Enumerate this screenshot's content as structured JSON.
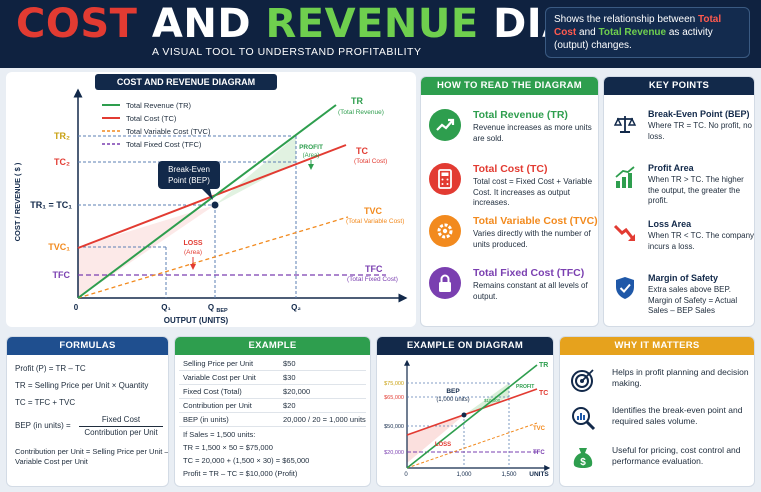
{
  "header": {
    "title_cost": "COST",
    "title_and": "AND",
    "title_revenue": "REVENUE",
    "title_diagram": "DIAGRAM",
    "subtitle": "A VISUAL TOOL TO UNDERSTAND PROFITABILITY",
    "note_pre": "Shows the relationship between ",
    "note_tc": "Total Cost",
    "note_and": " and ",
    "note_tr": "Total Revenue",
    "note_post": " as activity (output) changes."
  },
  "main_diagram": {
    "heading": "COST AND REVENUE DIAGRAM",
    "legend": [
      "Total Revenue (TR)",
      "Total Cost (TC)",
      "Total Variable Cost (TVC)",
      "Total Fixed Cost (TFC)"
    ],
    "y_axis_label": "COST / REVENUE ( $ )",
    "x_axis_label": "OUTPUT (UNITS)",
    "y_ticks": [
      "TR₂",
      "TC₂",
      "TR₁ = TC₁",
      "TVC₁",
      "TFC"
    ],
    "x_ticks": [
      "0",
      "Q₁",
      "Q",
      "BEP",
      "Q₂"
    ],
    "origin": "0",
    "tr_label": "TR",
    "tr_sub": "(Total Revenue)",
    "tc_label": "TC",
    "tc_sub": "(Total Cost)",
    "tvc_label": "TVC",
    "tvc_sub": "(Total Variable Cost)",
    "tfc_label": "TFC",
    "tfc_sub": "(Total Fixed Cost)",
    "bep_line1": "Break-Even",
    "bep_line2": "Point (BEP)",
    "profit_line1": "PROFIT",
    "profit_line2": "(Area)",
    "loss_line1": "LOSS",
    "loss_line2": "(Area)"
  },
  "how_to_read": {
    "heading": "HOW TO READ THE DIAGRAM",
    "items": [
      {
        "icon": "trend-up-icon",
        "title": "Total Revenue (TR)",
        "text": "Revenue increases as more units are sold.",
        "color": "#2e9e4e"
      },
      {
        "icon": "calculator-icon",
        "title": "Total Cost (TC)",
        "text": "Total cost = Fixed Cost + Variable Cost. It increases as output increases.",
        "color": "#e23b32"
      },
      {
        "icon": "gear-icon",
        "title": "Total Variable Cost (TVC)",
        "text": "Varies directly with the number of units produced.",
        "color": "#f28a1e"
      },
      {
        "icon": "lock-icon",
        "title": "Total Fixed Cost (TFC)",
        "text": "Remains constant at all levels of output.",
        "color": "#7a3fb0"
      }
    ]
  },
  "key_points": {
    "heading": "KEY POINTS",
    "items": [
      {
        "icon": "scale-icon",
        "title": "Break-Even Point (BEP)",
        "text": "Where TR = TC. No profit, no loss."
      },
      {
        "icon": "bar-chart-up-icon",
        "title": "Profit Area",
        "text": "When TR > TC. The higher the output, the greater the profit."
      },
      {
        "icon": "trend-down-icon",
        "title": "Loss Area",
        "text": "When TR < TC. The company incurs a loss."
      },
      {
        "icon": "shield-check-icon",
        "title": "Margin of Safety",
        "text": "Extra sales above BEP. Margin of Safety = Actual Sales – BEP Sales"
      }
    ]
  },
  "formulas": {
    "heading": "FORMULAS",
    "profit": "Profit (P) = TR – TC",
    "tr": "TR = Selling Price per Unit × Quantity",
    "tc": "TC = TFC + TVC",
    "bep_lhs": "BEP (in units)  =",
    "bep_num": "Fixed Cost",
    "bep_den": "Contribution per Unit",
    "contrib_1": "Contribution per Unit = Selling Price per Unit –",
    "contrib_2": "Variable Cost per Unit"
  },
  "example": {
    "heading": "EXAMPLE",
    "rows": [
      {
        "label": "Selling Price per Unit",
        "value": "$50"
      },
      {
        "label": "Variable Cost per Unit",
        "value": "$30"
      },
      {
        "label": "Fixed Cost (Total)",
        "value": "$20,000"
      },
      {
        "label": "Contribution per Unit",
        "value": "$20"
      },
      {
        "label": "BEP (in units)",
        "value": "20,000 / 20 = 1,000 units"
      }
    ],
    "calc": [
      "If Sales = 1,500 units:",
      "TR = 1,500 × 50 = $75,000",
      "TC = 20,000 + (1,500 × 30) = $65,000",
      "Profit = TR – TC = $10,000 (Profit)"
    ]
  },
  "example_diagram": {
    "heading": "EXAMPLE ON DIAGRAM",
    "y_ticks": [
      "$75,000",
      "$65,000",
      "$50,000",
      "$20,000"
    ],
    "x_ticks": [
      "0",
      "1,000",
      "1,500"
    ],
    "x_label": "UNITS",
    "bep_1": "BEP",
    "bep_2": "(1,000 units)",
    "profit": "PROFIT",
    "profit_val": "$10,000",
    "loss": "LOSS",
    "tr": "TR",
    "tc": "TC",
    "tvc": "TVC",
    "tfc": "TFC"
  },
  "why": {
    "heading": "WHY IT MATTERS",
    "items": [
      {
        "icon": "target-icon",
        "text": "Helps in profit planning and decision making."
      },
      {
        "icon": "magnifier-chart-icon",
        "text": "Identifies the break-even point and required sales volume."
      },
      {
        "icon": "money-bag-icon",
        "text": "Useful for pricing, cost control and performance evaluation."
      }
    ]
  },
  "colors": {
    "tr": "#2e9e4e",
    "tc": "#e23b32",
    "tvc": "#f28a1e",
    "tfc": "#7a3fb0",
    "navy": "#12294a"
  }
}
